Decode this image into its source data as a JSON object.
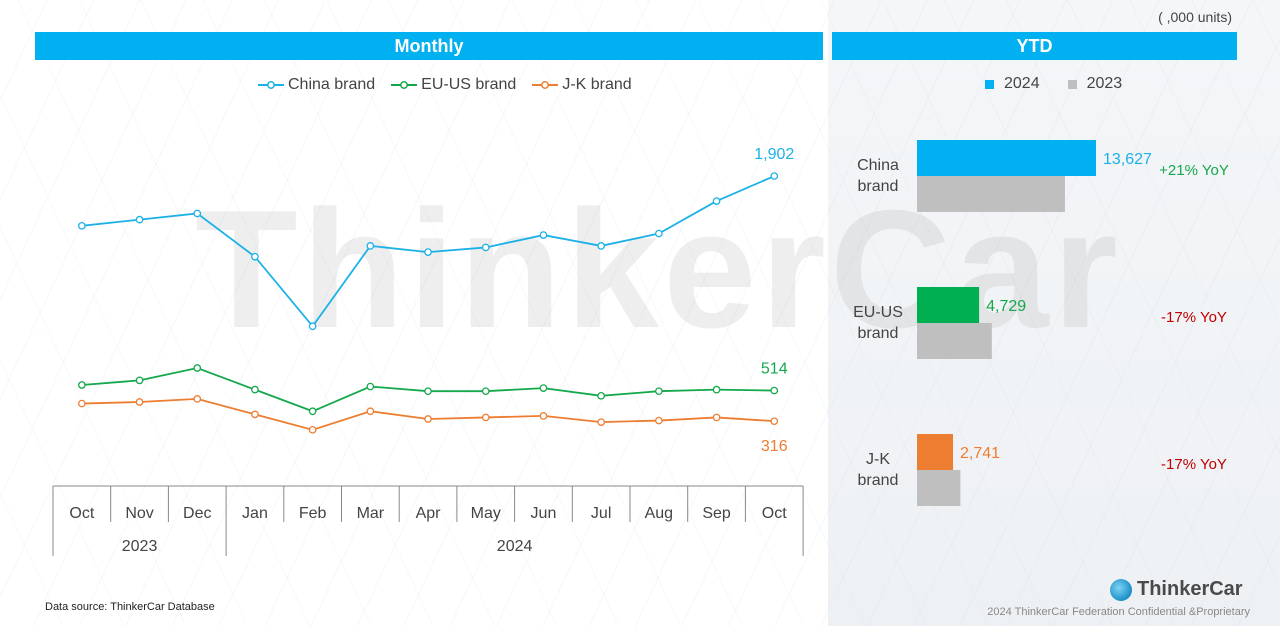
{
  "units_note": "( ,000 units)",
  "banners": {
    "monthly": "Monthly",
    "ytd": "YTD"
  },
  "colors": {
    "china": "#1bb1e7",
    "euus": "#14a84c",
    "jk": "#ed7d31",
    "bar2023": "#bfbfbf",
    "bar2024_china": "#00b0f0",
    "bar2024_euus": "#00b050",
    "bar2024_jk": "#ed7d31",
    "banner": "#00b0f0",
    "yoy_pos": "#14a84c",
    "yoy_neg": "#c00000"
  },
  "chart_data": [
    {
      "type": "line",
      "title": "Monthly",
      "categories": [
        "Oct",
        "Nov",
        "Dec",
        "Jan",
        "Feb",
        "Mar",
        "Apr",
        "May",
        "Jun",
        "Jul",
        "Aug",
        "Sep",
        "Oct"
      ],
      "years": [
        {
          "label": "2023",
          "months": 3
        },
        {
          "label": "2024",
          "months": 10
        }
      ],
      "series": [
        {
          "name": "China brand",
          "color": "#1bb1e7",
          "values": [
            1580,
            1620,
            1660,
            1380,
            930,
            1450,
            1410,
            1440,
            1520,
            1450,
            1530,
            1740,
            1902
          ],
          "end_label": "1,902"
        },
        {
          "name": "EU-US brand",
          "color": "#14a84c",
          "values": [
            550,
            580,
            660,
            520,
            380,
            540,
            510,
            510,
            530,
            480,
            510,
            520,
            514
          ],
          "end_label": "514"
        },
        {
          "name": "J-K brand",
          "color": "#ed7d31",
          "values": [
            430,
            440,
            460,
            360,
            260,
            380,
            330,
            340,
            350,
            310,
            320,
            340,
            316
          ],
          "end_label": "316"
        }
      ],
      "ylim": [
        0,
        2200
      ],
      "grid": false,
      "legend": "top-center"
    },
    {
      "type": "bar",
      "title": "YTD",
      "orientation": "horizontal",
      "categories": [
        "China brand",
        "EU-US brand",
        "J-K brand"
      ],
      "category_lines": [
        [
          "China",
          "brand"
        ],
        [
          "EU-US",
          "brand"
        ],
        [
          "J-K",
          "brand"
        ]
      ],
      "series": [
        {
          "name": "2024",
          "values": [
            13627,
            4729,
            2741
          ],
          "labels": [
            "13,627",
            "4,729",
            "2,741"
          ]
        },
        {
          "name": "2023",
          "values": [
            11262,
            5697,
            3302
          ]
        }
      ],
      "yoy": [
        "+21% YoY",
        "-17% YoY",
        "-17% YoY"
      ],
      "legend": "top"
    }
  ],
  "footer": {
    "source": "Data source: ThinkerCar Database",
    "logo_text": "ThinkerCar",
    "confidential": "2024 ThinkerCar Federation Confidential &Proprietary"
  }
}
